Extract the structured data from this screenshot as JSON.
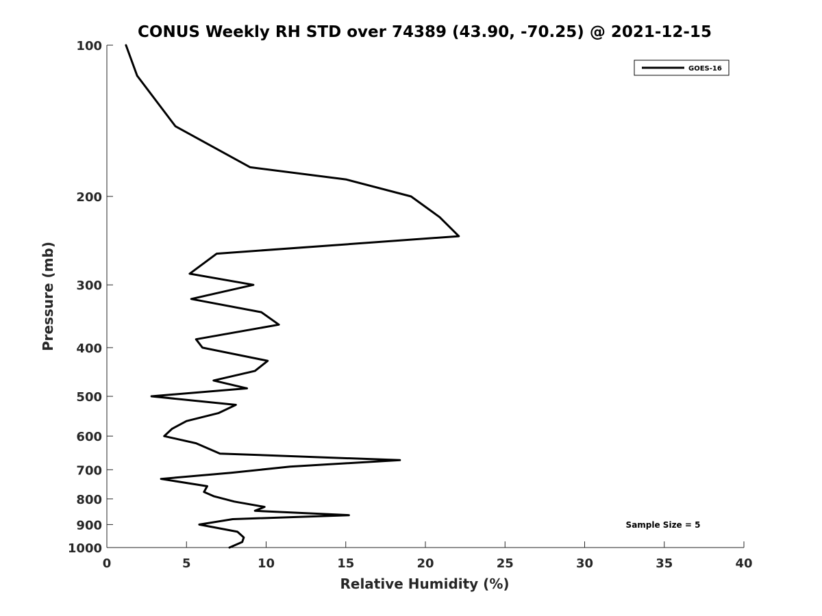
{
  "chart_data": {
    "type": "line",
    "title": "CONUS Weekly RH STD over 74389 (43.90, -70.25) @ 2021-12-15",
    "xlabel": "Relative Humidity (%)",
    "ylabel": "Pressure (mb)",
    "xlim": [
      0,
      40
    ],
    "ylim": [
      100,
      1000
    ],
    "y_scale": "log",
    "y_reversed": true,
    "grid": false,
    "legend_position": "top-right",
    "xticks": [
      0,
      5,
      10,
      15,
      20,
      25,
      30,
      35,
      40
    ],
    "xtick_labels": [
      "0",
      "5",
      "10",
      "15",
      "20",
      "25",
      "30",
      "35",
      "40"
    ],
    "yticks": [
      100,
      200,
      300,
      400,
      500,
      600,
      700,
      800,
      900,
      1000
    ],
    "ytick_labels": [
      "100",
      "200",
      "300",
      "400",
      "500",
      "600",
      "700",
      "800",
      "900",
      "1000"
    ],
    "series": [
      {
        "name": "GOES-16",
        "color": "#000000",
        "x": [
          1.2,
          1.9,
          4.3,
          9.0,
          15.0,
          19.1,
          20.9,
          22.1,
          6.9,
          5.2,
          9.2,
          5.3,
          9.7,
          10.8,
          5.6,
          6.0,
          10.1,
          9.3,
          6.7,
          8.8,
          2.8,
          8.1,
          7.0,
          5.0,
          4.1,
          3.6,
          5.6,
          7.1,
          18.4,
          11.5,
          7.8,
          3.4,
          6.3,
          6.1,
          6.7,
          8.0,
          9.9,
          9.3,
          15.2,
          7.9,
          5.8,
          8.2,
          8.6,
          8.5,
          7.7
        ],
        "y": [
          100,
          115,
          145,
          175,
          185,
          200,
          220,
          240,
          260,
          285,
          300,
          320,
          340,
          360,
          385,
          400,
          425,
          445,
          465,
          482,
          500,
          520,
          540,
          560,
          580,
          600,
          620,
          650,
          670,
          690,
          710,
          730,
          755,
          775,
          790,
          810,
          830,
          845,
          862,
          878,
          900,
          930,
          955,
          975,
          1000
        ]
      }
    ],
    "annotations": [
      "Sample Size = 5"
    ]
  }
}
